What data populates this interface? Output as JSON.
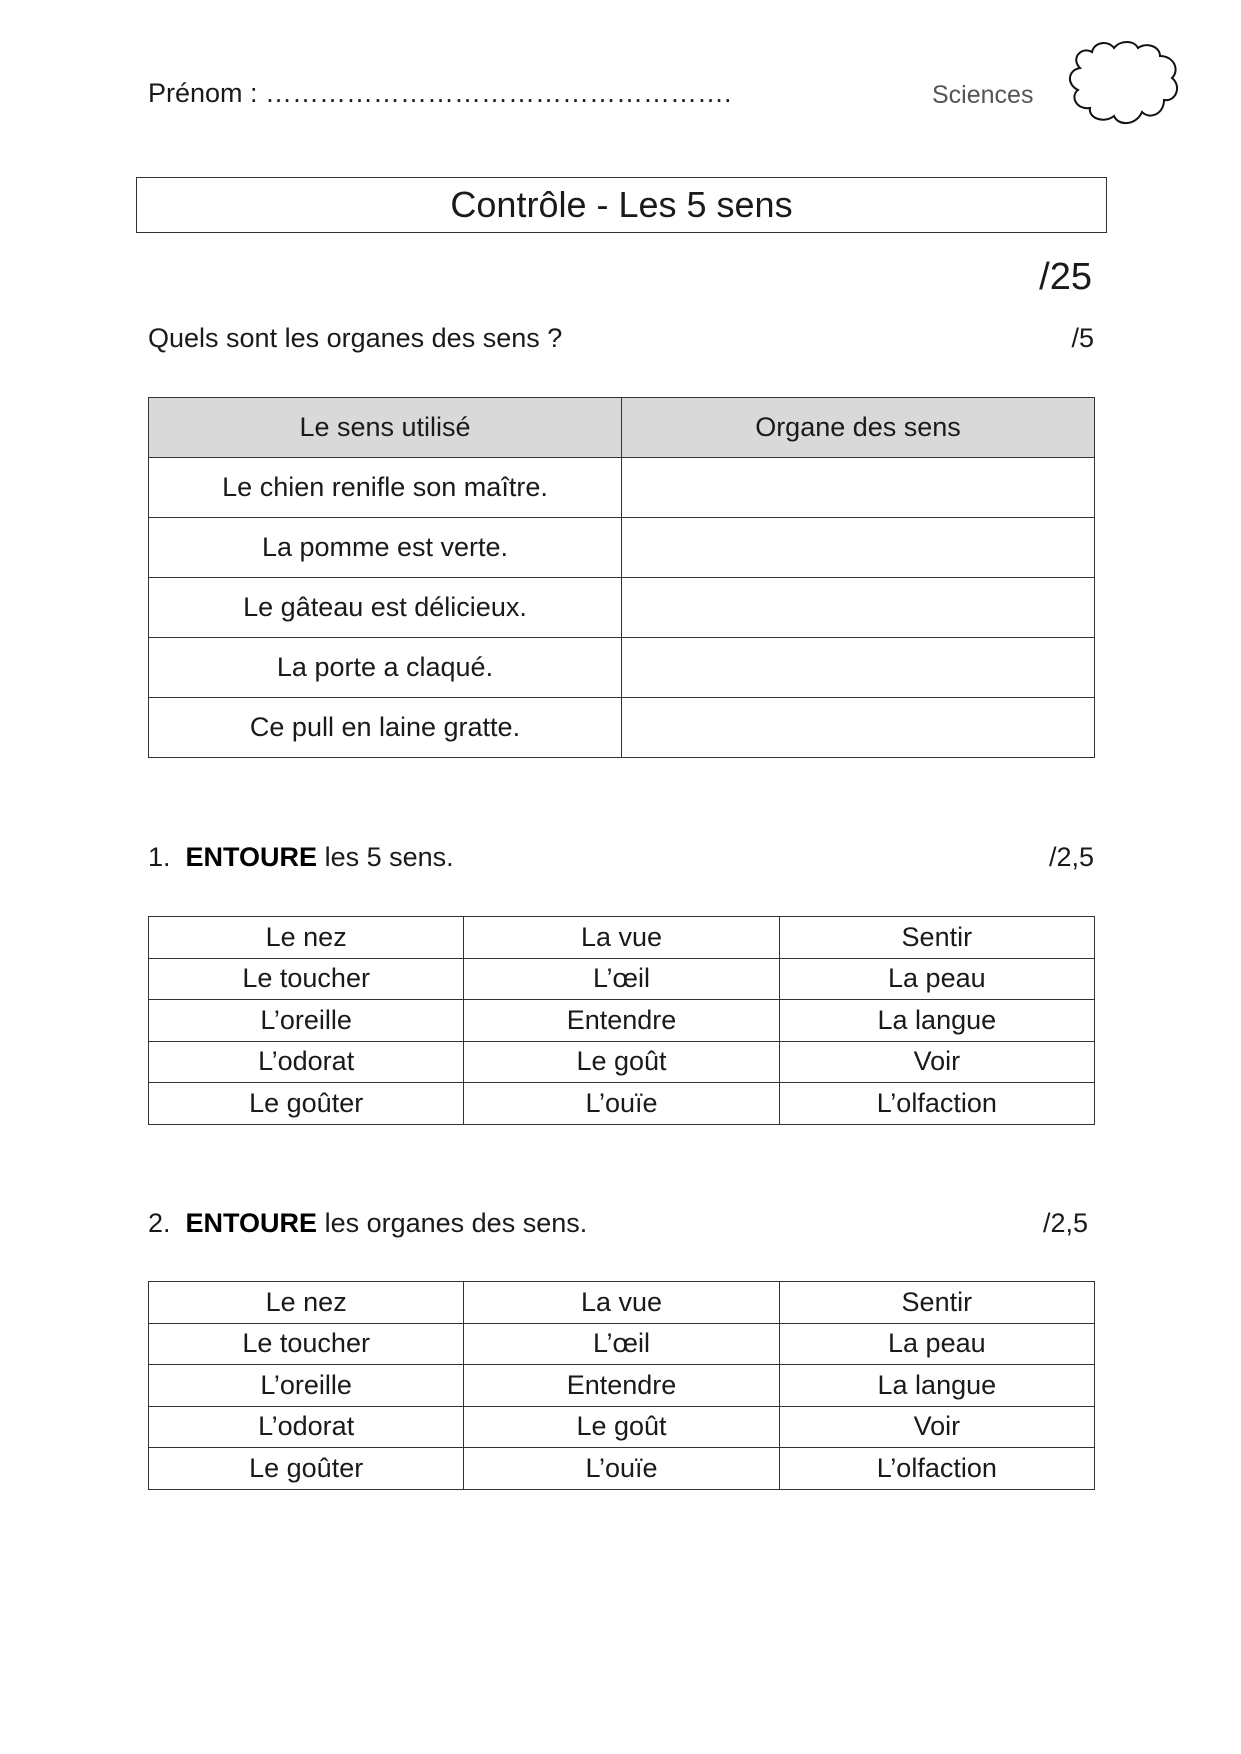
{
  "header": {
    "prenom_label": "Prénom : …………………………………………….",
    "subject": "Sciences",
    "cloud_icon": "cloud-icon"
  },
  "title": "Contrôle - Les 5 sens",
  "total_score": "/25",
  "question1": {
    "text": "Quels sont les organes des sens ?",
    "score": "/5",
    "headers": [
      "Le sens utilisé",
      "Organe des sens"
    ],
    "rows": [
      [
        "Le chien renifle son maître.",
        ""
      ],
      [
        "La pomme est verte.",
        ""
      ],
      [
        "Le gâteau est délicieux.",
        ""
      ],
      [
        "La porte a claqué.",
        ""
      ],
      [
        "Ce pull en laine gratte.",
        ""
      ]
    ]
  },
  "exercise1": {
    "number": "1.",
    "verb": "ENTOURE",
    "rest": " les 5 sens.",
    "score": "/2,5"
  },
  "exercise2": {
    "number": "2.",
    "verb": "ENTOURE",
    "rest": " les organes des sens.",
    "score": "/2,5"
  },
  "word_grid": [
    [
      "Le nez",
      "La vue",
      "Sentir"
    ],
    [
      "Le toucher",
      "L’œil",
      "La peau"
    ],
    [
      "L’oreille",
      "Entendre",
      "La langue"
    ],
    [
      "L’odorat",
      "Le goût",
      "Voir"
    ],
    [
      "Le goûter",
      "L’ouïe",
      "L’olfaction"
    ]
  ]
}
